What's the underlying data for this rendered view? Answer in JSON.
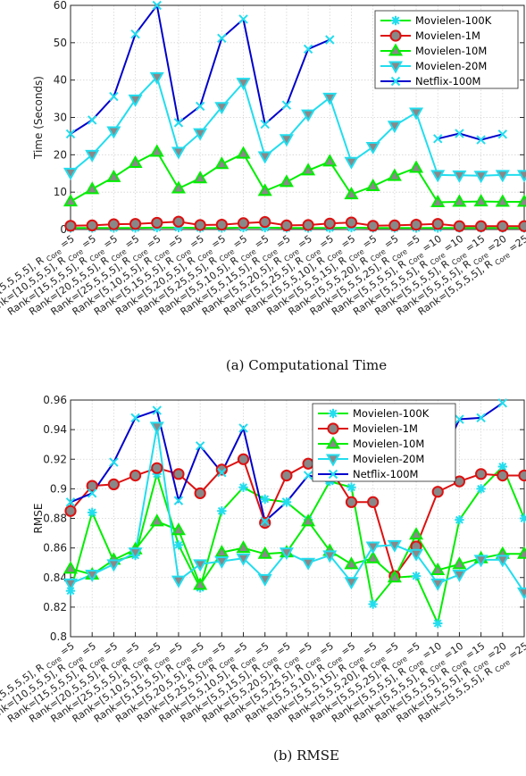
{
  "captions": [
    "(a) Computational Time",
    "(b) RMSE"
  ],
  "chart_data": [
    {
      "type": "line",
      "ylabel": "Time (Seconds)",
      "ylim": [
        0,
        60
      ],
      "yticks": [
        0,
        10,
        20,
        30,
        40,
        50,
        60
      ],
      "grid": true,
      "legend_position": "top-right",
      "categories": [
        {
          "main": "Rank=[5,5,5,5], R",
          "sub": "Core",
          "suffix": "=5"
        },
        {
          "main": "Rank=[10,5,5,5], R",
          "sub": "Core",
          "suffix": "=5"
        },
        {
          "main": "Rank=[15,5,5,5], R",
          "sub": "Core",
          "suffix": "=5"
        },
        {
          "main": "Rank=[20,5,5,5], R",
          "sub": "Core",
          "suffix": "=5"
        },
        {
          "main": "Rank=[25,5,5,5], R",
          "sub": "Core",
          "suffix": "=5"
        },
        {
          "main": "Rank=[5,10,5,5], R",
          "sub": "Core",
          "suffix": "=5"
        },
        {
          "main": "Rank=[5,15,5,5], R",
          "sub": "Core",
          "suffix": "=5"
        },
        {
          "main": "Rank=[5,20,5,5], R",
          "sub": "Core",
          "suffix": "=5"
        },
        {
          "main": "Rank=[5,25,5,5], R",
          "sub": "Core",
          "suffix": "=5"
        },
        {
          "main": "Rank=[5,5,10,5], R",
          "sub": "Core",
          "suffix": "=5"
        },
        {
          "main": "Rank=[5,5,15,5], R",
          "sub": "Core",
          "suffix": "=5"
        },
        {
          "main": "Rank=[5,5,20,5], R",
          "sub": "Core",
          "suffix": "=5"
        },
        {
          "main": "Rank=[5,5,25,5], R",
          "sub": "Core",
          "suffix": "=5"
        },
        {
          "main": "Rank=[5,5,5,10], R",
          "sub": "Core",
          "suffix": "=5"
        },
        {
          "main": "Rank=[5,5,5,15], R",
          "sub": "Core",
          "suffix": "=5"
        },
        {
          "main": "Rank=[5,5,5,20], R",
          "sub": "Core",
          "suffix": "=5"
        },
        {
          "main": "Rank=[5,5,5,25], R",
          "sub": "Core",
          "suffix": "=5"
        },
        {
          "main": "Rank=[5,5,5,5], R",
          "sub": "Core",
          "suffix": "=10"
        },
        {
          "main": "Rank=[5,5,5,5], R",
          "sub": "Core",
          "suffix": "=10"
        },
        {
          "main": "Rank=[5,5,5,5], R",
          "sub": "Core",
          "suffix": "=15"
        },
        {
          "main": "Rank=[5,5,5,5], R",
          "sub": "Core",
          "suffix": "=20"
        },
        {
          "main": "Rank=[5,5,5,5], R",
          "sub": "Core",
          "suffix": "=25"
        }
      ],
      "series": [
        {
          "name": "Movielen-100K",
          "color": "#00ee00",
          "marker": "asterisk",
          "values": [
            0.4,
            0.4,
            0.4,
            0.4,
            0.5,
            0.5,
            0.4,
            0.4,
            0.5,
            0.5,
            0.4,
            0.4,
            0.4,
            0.5,
            0.4,
            0.4,
            0.4,
            0.4,
            0.4,
            0.4,
            0.4,
            0.4
          ]
        },
        {
          "name": "Movielen-1M",
          "color": "#dd1111",
          "marker": "circle",
          "values": [
            1.0,
            1.1,
            1.4,
            1.5,
            1.8,
            2.1,
            1.2,
            1.3,
            1.7,
            2.0,
            1.1,
            1.2,
            1.6,
            1.9,
            1.0,
            1.1,
            1.3,
            1.5,
            0.9,
            0.9,
            0.9,
            0.9
          ]
        },
        {
          "name": "Movielen-10M",
          "color": "#00ee00",
          "marker": "triangle-up",
          "values": [
            7.5,
            10.8,
            14.0,
            17.8,
            20.8,
            11.0,
            13.7,
            17.5,
            20.3,
            10.3,
            12.7,
            15.8,
            18.2,
            9.4,
            11.6,
            14.3,
            16.5,
            7.3,
            7.4,
            7.5,
            7.4,
            7.4
          ]
        },
        {
          "name": "Movielen-20M",
          "color": "#22ddee",
          "marker": "triangle-down",
          "values": [
            15.2,
            20.0,
            26.3,
            34.8,
            40.8,
            20.8,
            25.8,
            32.8,
            39.3,
            19.6,
            24.2,
            30.8,
            35.3,
            18.1,
            22.1,
            27.8,
            31.3,
            14.6,
            14.5,
            14.4,
            14.6,
            14.6
          ]
        },
        {
          "name": "Netflix-100M",
          "color": "#0000cc",
          "marker": "x",
          "values": [
            25.6,
            29.3,
            35.6,
            52.3,
            60.0,
            28.6,
            33.0,
            51.2,
            56.3,
            28.2,
            33.3,
            48.3,
            50.8,
            null,
            null,
            null,
            null,
            24.3,
            25.7,
            24.0,
            25.5,
            null
          ]
        }
      ]
    },
    {
      "type": "line",
      "ylabel": "RMSE",
      "ylim": [
        0.8,
        0.96
      ],
      "yticks": [
        0.8,
        0.82,
        0.84,
        0.86,
        0.88,
        0.9,
        0.92,
        0.94,
        0.96
      ],
      "ytick_labels": [
        "0.8",
        "0.82",
        "0.84",
        "0.86",
        "0.88",
        "0.9",
        "0.92",
        "0.94",
        "0.96"
      ],
      "grid": true,
      "legend_position": "top-right",
      "categories": [
        {
          "main": "Rank=[5,5,5,5], R",
          "sub": "Core",
          "suffix": "=5"
        },
        {
          "main": "Rank=[10,5,5,5], R",
          "sub": "Core",
          "suffix": "=5"
        },
        {
          "main": "Rank=[15,5,5,5], R",
          "sub": "Core",
          "suffix": "=5"
        },
        {
          "main": "Rank=[20,5,5,5], R",
          "sub": "Core",
          "suffix": "=5"
        },
        {
          "main": "Rank=[25,5,5,5], R",
          "sub": "Core",
          "suffix": "=5"
        },
        {
          "main": "Rank=[5,10,5,5], R",
          "sub": "Core",
          "suffix": "=5"
        },
        {
          "main": "Rank=[5,15,5,5], R",
          "sub": "Core",
          "suffix": "=5"
        },
        {
          "main": "Rank=[5,20,5,5], R",
          "sub": "Core",
          "suffix": "=5"
        },
        {
          "main": "Rank=[5,25,5,5], R",
          "sub": "Core",
          "suffix": "=5"
        },
        {
          "main": "Rank=[5,5,10,5], R",
          "sub": "Core",
          "suffix": "=5"
        },
        {
          "main": "Rank=[5,5,15,5], R",
          "sub": "Core",
          "suffix": "=5"
        },
        {
          "main": "Rank=[5,5,20,5], R",
          "sub": "Core",
          "suffix": "=5"
        },
        {
          "main": "Rank=[5,5,25,5], R",
          "sub": "Core",
          "suffix": "=5"
        },
        {
          "main": "Rank=[5,5,5,10], R",
          "sub": "Core",
          "suffix": "=5"
        },
        {
          "main": "Rank=[5,5,5,15], R",
          "sub": "Core",
          "suffix": "=5"
        },
        {
          "main": "Rank=[5,5,5,20], R",
          "sub": "Core",
          "suffix": "=5"
        },
        {
          "main": "Rank=[5,5,5,25], R",
          "sub": "Core",
          "suffix": "=5"
        },
        {
          "main": "Rank=[5,5,5,5], R",
          "sub": "Core",
          "suffix": "=10"
        },
        {
          "main": "Rank=[5,5,5,5], R",
          "sub": "Core",
          "suffix": "=10"
        },
        {
          "main": "Rank=[5,5,5,5], R",
          "sub": "Core",
          "suffix": "=15"
        },
        {
          "main": "Rank=[5,5,5,5], R",
          "sub": "Core",
          "suffix": "=20"
        },
        {
          "main": "Rank=[5,5,5,5], R",
          "sub": "Core",
          "suffix": "=25"
        }
      ],
      "series": [
        {
          "name": "Movielen-100K",
          "color": "#00ee00",
          "marker": "asterisk",
          "values": [
            0.831,
            0.884,
            0.851,
            0.855,
            0.91,
            0.862,
            0.833,
            0.885,
            0.901,
            0.893,
            0.891,
            0.879,
            0.905,
            0.901,
            0.822,
            0.84,
            0.841,
            0.809,
            0.879,
            0.9,
            0.915,
            0.88
          ]
        },
        {
          "name": "Movielen-1M",
          "color": "#dd1111",
          "marker": "circle",
          "values": [
            0.885,
            0.902,
            0.903,
            0.909,
            0.914,
            0.91,
            0.897,
            0.913,
            0.92,
            0.877,
            0.909,
            0.917,
            0.914,
            0.891,
            0.891,
            0.841,
            0.861,
            0.898,
            0.905,
            0.91,
            0.909,
            0.909
          ]
        },
        {
          "name": "Movielen-10M",
          "color": "#00ee00",
          "marker": "triangle-up",
          "values": [
            0.846,
            0.842,
            0.852,
            0.859,
            0.878,
            0.872,
            0.835,
            0.857,
            0.86,
            0.856,
            0.857,
            0.878,
            0.858,
            0.849,
            0.853,
            0.84,
            0.869,
            0.845,
            0.849,
            0.853,
            0.856,
            0.856
          ]
        },
        {
          "name": "Movielen-20M",
          "color": "#22ddee",
          "marker": "triangle-down",
          "values": [
            0.836,
            0.842,
            0.849,
            0.857,
            0.942,
            0.838,
            0.849,
            0.851,
            0.853,
            0.839,
            0.857,
            0.85,
            0.855,
            0.837,
            0.861,
            0.862,
            0.856,
            0.836,
            0.842,
            0.852,
            0.852,
            0.83
          ]
        },
        {
          "name": "Netflix-100M",
          "color": "#0000cc",
          "marker": "x",
          "values": [
            0.891,
            0.897,
            0.918,
            0.948,
            0.953,
            0.892,
            0.929,
            0.911,
            0.941,
            0.878,
            0.891,
            0.909,
            0.906,
            null,
            null,
            null,
            null,
            0.916,
            0.947,
            0.948,
            0.958,
            null
          ]
        }
      ]
    }
  ]
}
